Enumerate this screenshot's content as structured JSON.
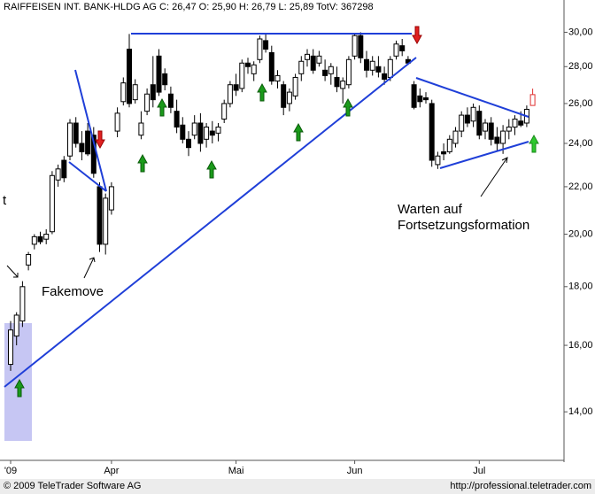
{
  "chart_data": {
    "type": "candlestick",
    "title": "RAIFFEISEN  INT. BANK-HLDG AG C: 26,47 O: 25,90 H: 26,79 L: 25,89 TotV: 367298",
    "footer_left": "© 2009 TeleTrader Software AG",
    "footer_right": "http://professional.teletrader.com",
    "annotations": [
      "Fakemove",
      "Warten auf",
      "Fortsetzungsformation",
      "t"
    ],
    "log_scale": true,
    "color": "#000000",
    "last_color": "#e03030",
    "ylim": [
      12.7,
      31
    ],
    "yticks": [
      {
        "value": 14,
        "label": "14,00"
      },
      {
        "value": 16,
        "label": "16,00"
      },
      {
        "value": 18,
        "label": "18,00"
      },
      {
        "value": 20,
        "label": "20,00"
      },
      {
        "value": 22,
        "label": "22,00"
      },
      {
        "value": 24,
        "label": "24,00"
      },
      {
        "value": 26,
        "label": "26,00"
      },
      {
        "value": 28,
        "label": "28,00"
      },
      {
        "value": 30,
        "label": "30,00"
      }
    ],
    "categories": [
      "'09",
      null,
      null,
      null,
      null,
      null,
      null,
      null,
      null,
      null,
      null,
      null,
      null,
      null,
      null,
      null,
      null,
      "Apr",
      null,
      null,
      null,
      null,
      null,
      null,
      null,
      null,
      null,
      null,
      null,
      null,
      null,
      null,
      null,
      null,
      null,
      null,
      null,
      null,
      "Mai",
      null,
      null,
      null,
      null,
      null,
      null,
      null,
      null,
      null,
      null,
      null,
      null,
      null,
      null,
      null,
      null,
      null,
      null,
      null,
      "Jun",
      null,
      null,
      null,
      null,
      null,
      null,
      null,
      null,
      null,
      null,
      null,
      null,
      null,
      null,
      null,
      null,
      null,
      null,
      null,
      null,
      "Jul",
      null,
      null,
      null,
      null,
      null,
      null,
      null,
      null,
      null
    ],
    "open": [
      15.4,
      16.3,
      16.8,
      18.8,
      19.6,
      19.9,
      19.8,
      20.1,
      22.3,
      23.2,
      23.4,
      25.0,
      24.0,
      24.6,
      24.4,
      22.0,
      19.6,
      21.0,
      24.6,
      26.1,
      29.0,
      26.2,
      24.4,
      25.6,
      27.0,
      28.6,
      27.6,
      26.5,
      25.6,
      24.9,
      24.2,
      24.4,
      25.0,
      24.2,
      24.6,
      24.5,
      25.2,
      26.0,
      27.0,
      26.8,
      28.2,
      27.6,
      28.4,
      29.5,
      28.8,
      27.2,
      27.0,
      26.0,
      26.4,
      27.6,
      28.4,
      28.6,
      28.2,
      27.8,
      27.6,
      27.4,
      26.8,
      27.0,
      28.6,
      29.8,
      28.4,
      27.8,
      28.0,
      27.6,
      27.4,
      28.6,
      29.2,
      28.4,
      27.0,
      26.4,
      26.3,
      26.0,
      23.0,
      23.6,
      23.6,
      24.0,
      24.6,
      25.4,
      25.1,
      25.6,
      24.6,
      25.0,
      24.3,
      24.0,
      24.6,
      24.8,
      25.1,
      25.0,
      25.9
    ],
    "high": [
      16.8,
      17.1,
      18.2,
      19.3,
      20.0,
      20.1,
      20.2,
      22.7,
      23.0,
      23.4,
      25.2,
      25.3,
      24.6,
      25.0,
      24.8,
      22.2,
      21.7,
      22.2,
      25.8,
      27.4,
      29.9,
      27.3,
      25.6,
      26.8,
      28.6,
      29.0,
      27.9,
      26.9,
      26.2,
      25.3,
      24.6,
      25.4,
      25.5,
      25.0,
      25.1,
      25.0,
      26.2,
      27.2,
      27.6,
      28.4,
      28.5,
      28.3,
      29.8,
      29.9,
      29.2,
      27.8,
      27.2,
      26.8,
      27.6,
      28.6,
      29.0,
      29.0,
      28.9,
      28.4,
      28.2,
      28.0,
      27.4,
      28.6,
      29.9,
      30.0,
      28.9,
      28.6,
      28.6,
      28.0,
      28.6,
      29.5,
      29.6,
      28.6,
      27.2,
      26.8,
      26.6,
      26.2,
      23.6,
      24.0,
      24.4,
      24.8,
      25.6,
      25.8,
      26.0,
      25.9,
      25.2,
      25.3,
      24.8,
      24.9,
      25.2,
      25.4,
      25.6,
      25.9,
      26.79
    ],
    "low": [
      15.2,
      16.0,
      16.6,
      18.6,
      19.4,
      19.6,
      19.6,
      20.0,
      22.0,
      22.2,
      23.2,
      23.8,
      23.2,
      23.4,
      22.4,
      19.3,
      19.2,
      20.8,
      24.3,
      25.9,
      25.8,
      26.0,
      24.2,
      25.4,
      25.8,
      26.4,
      26.7,
      25.5,
      24.5,
      24.0,
      23.4,
      24.2,
      23.6,
      23.8,
      24.0,
      24.1,
      25.0,
      25.8,
      26.4,
      26.6,
      27.6,
      27.2,
      28.2,
      28.8,
      27.0,
      26.8,
      25.4,
      25.6,
      26.2,
      27.2,
      28.0,
      27.6,
      28.0,
      27.2,
      27.0,
      26.6,
      26.0,
      26.8,
      28.4,
      28.2,
      27.4,
      27.5,
      27.4,
      27.0,
      27.2,
      28.4,
      28.6,
      28.1,
      25.7,
      25.8,
      26.0,
      22.9,
      22.8,
      23.2,
      23.5,
      23.8,
      24.3,
      24.8,
      24.8,
      24.2,
      24.2,
      23.9,
      23.6,
      23.5,
      24.2,
      24.4,
      24.8,
      24.8,
      25.89
    ],
    "close": [
      16.5,
      17.0,
      18.0,
      19.2,
      19.9,
      19.7,
      20.0,
      22.5,
      22.8,
      22.4,
      25.0,
      24.0,
      23.6,
      23.5,
      22.6,
      19.6,
      21.5,
      22.0,
      25.5,
      27.1,
      26.0,
      27.0,
      25.0,
      26.5,
      26.2,
      26.6,
      27.0,
      25.8,
      24.8,
      24.2,
      23.8,
      25.0,
      24.0,
      24.8,
      24.4,
      24.8,
      26.0,
      27.0,
      26.7,
      28.2,
      28.0,
      28.1,
      29.6,
      29.0,
      27.2,
      27.5,
      25.8,
      26.6,
      27.4,
      28.3,
      28.7,
      27.8,
      28.6,
      27.5,
      28.0,
      26.9,
      27.2,
      28.4,
      29.8,
      28.5,
      27.8,
      28.3,
      27.7,
      27.3,
      28.4,
      29.3,
      28.9,
      28.2,
      25.8,
      26.1,
      26.2,
      23.2,
      23.4,
      23.5,
      24.2,
      24.6,
      25.4,
      25.0,
      25.8,
      24.4,
      25.0,
      24.2,
      24.0,
      24.6,
      24.8,
      25.2,
      24.9,
      25.7,
      26.47
    ]
  }
}
